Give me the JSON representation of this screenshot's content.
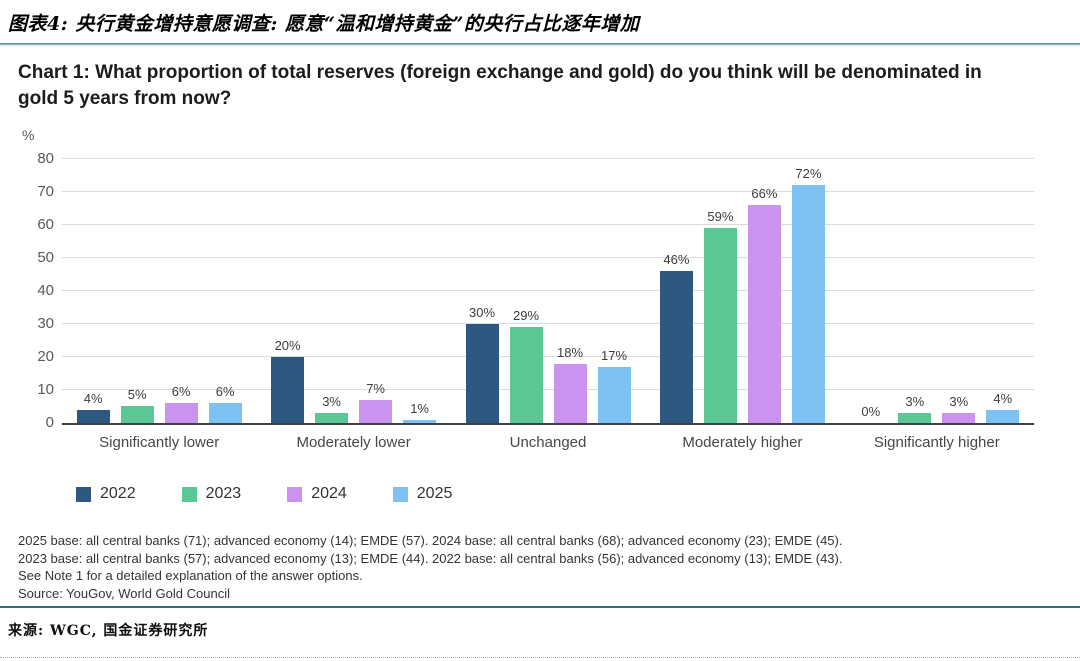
{
  "header": {
    "figure_title": "图表4: 央行黄金增持意愿调查: 愿意“温和增持黄金”的央行占比逐年增加"
  },
  "chart_data": {
    "type": "bar",
    "title": "Chart 1: What proportion of total reserves (foreign exchange and gold) do you think will be denominated in gold 5 years from now?",
    "ylabel": "%",
    "ylim": [
      0,
      80
    ],
    "ytick_step": 10,
    "grid": true,
    "legend_position": "bottom-left",
    "value_suffix": "%",
    "categories": [
      "Significantly lower",
      "Moderately lower",
      "Unchanged",
      "Moderately higher",
      "Significantly higher"
    ],
    "series": [
      {
        "name": "2022",
        "color": "#2f5880",
        "values": [
          4,
          20,
          30,
          46,
          0
        ]
      },
      {
        "name": "2023",
        "color": "#5ac795",
        "values": [
          5,
          3,
          29,
          59,
          3
        ]
      },
      {
        "name": "2024",
        "color": "#cb93f0",
        "values": [
          6,
          7,
          18,
          66,
          3
        ]
      },
      {
        "name": "2025",
        "color": "#7dc2f2",
        "values": [
          6,
          1,
          17,
          72,
          4
        ]
      }
    ]
  },
  "footnotes": [
    "2025 base: all central banks (71); advanced economy (14); EMDE (57). 2024 base: all central banks (68); advanced economy (23); EMDE (45).",
    "2023 base: all central banks (57); advanced economy (13); EMDE (44). 2022 base: all central banks (56); advanced economy (13); EMDE (43).",
    "See Note 1 for a detailed explanation of the answer options.",
    "Source: YouGov, World Gold Council"
  ],
  "footer": {
    "source": "来源: WGC, 国金证券研究所"
  }
}
